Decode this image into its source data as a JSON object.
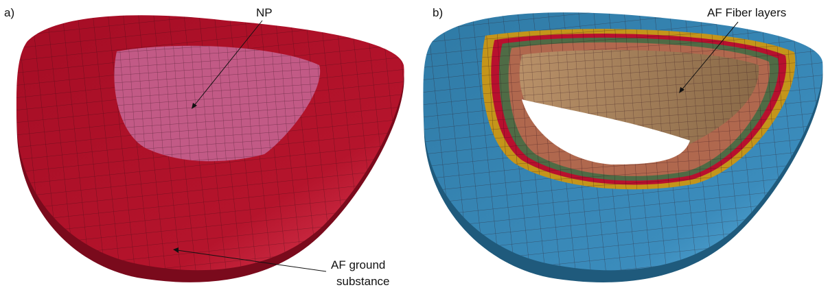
{
  "panel_a": {
    "label": "a)",
    "np_label": "NP",
    "af_label_lines": [
      "AF ground",
      "substance"
    ]
  },
  "panel_b": {
    "label": "b)",
    "fiber_label": "AF Fiber layers"
  }
}
